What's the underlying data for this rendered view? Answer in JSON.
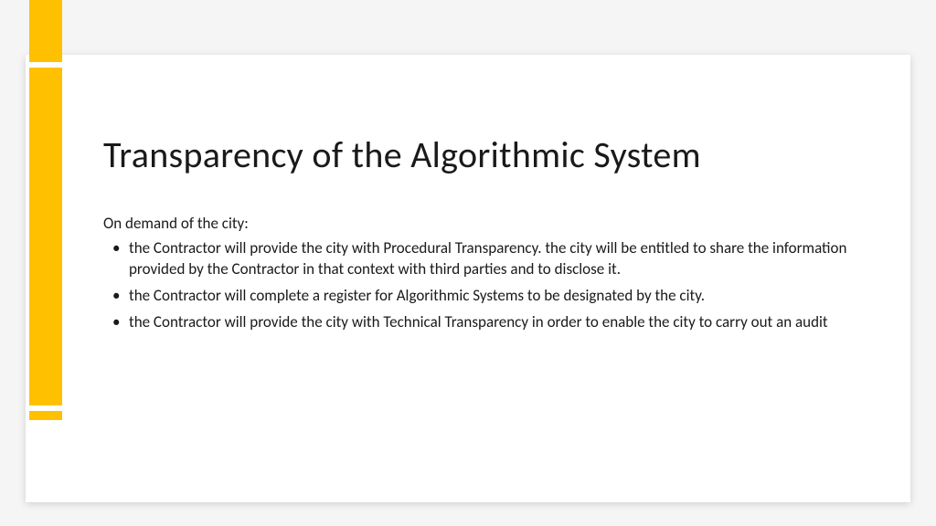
{
  "slide": {
    "title": "Transparency of the Algorithmic System",
    "intro": "On demand of the city:",
    "bullets": [
      "the Contractor will provide the city with Procedural Transparency. the city will be entitled to share the information provided by the Contractor in that context with third parties and to disclose it.",
      "the Contractor will complete a register for Algorithmic Systems to be designated by the city.",
      " the Contractor will provide the city with Technical Transparency in order to enable the city to carry out an audit"
    ],
    "accent_color": "#ffc000",
    "background_color": "#ffffff",
    "text_color": "#1a1a1a"
  }
}
